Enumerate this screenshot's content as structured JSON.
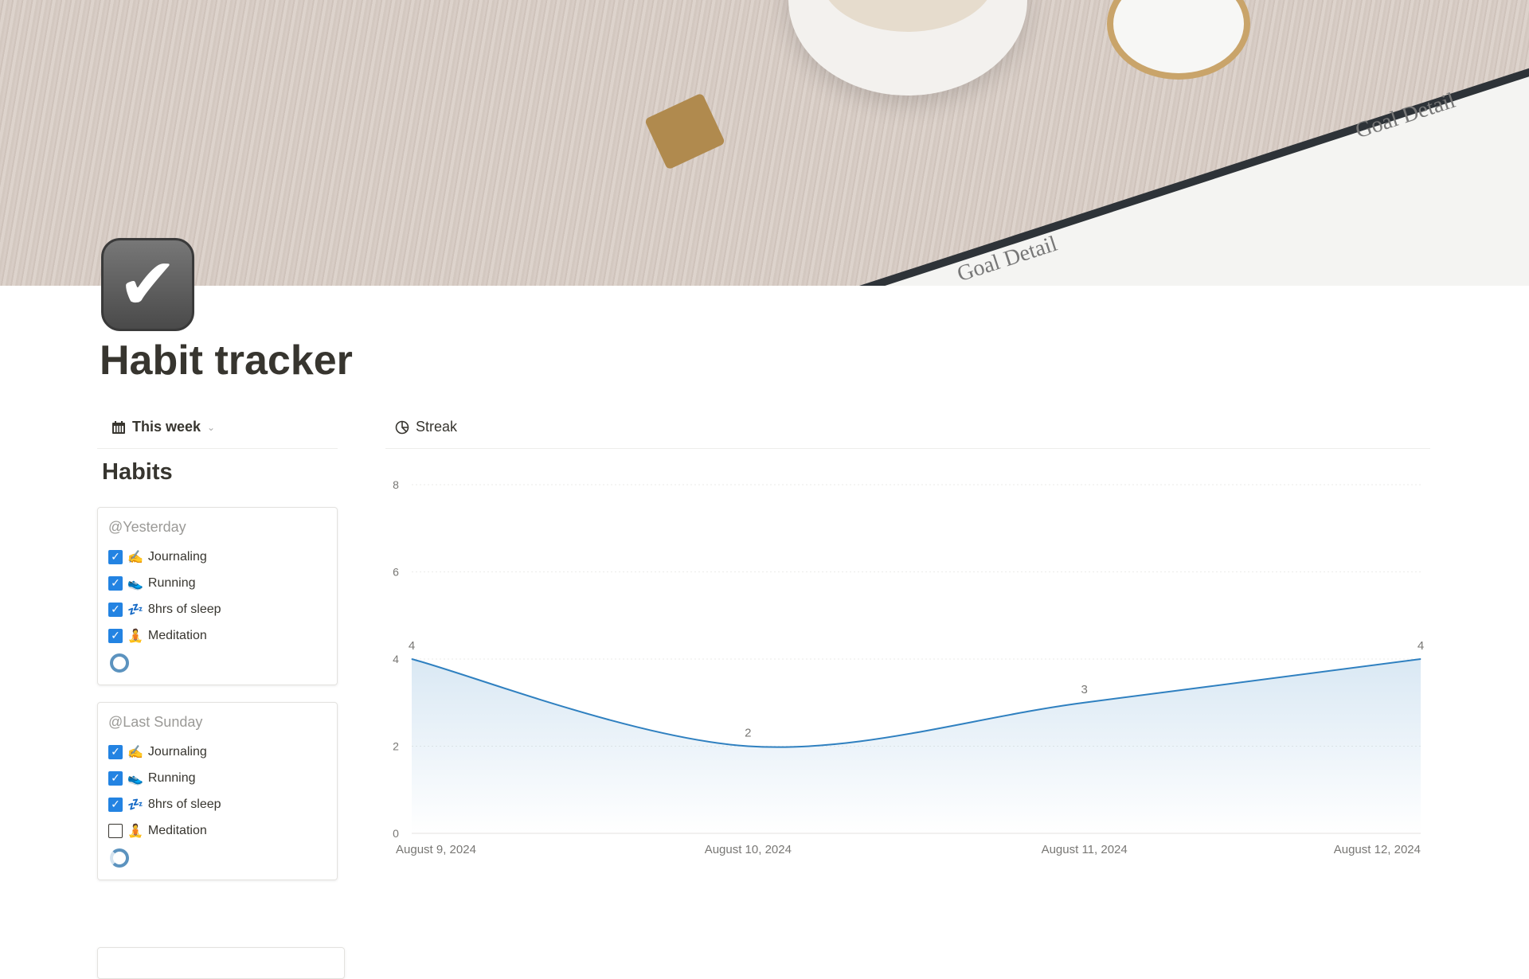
{
  "page": {
    "title": "Habit tracker",
    "icon": "checkmark-icon"
  },
  "view_tab": {
    "label": "This week",
    "icon": "calendar-icon"
  },
  "habits": {
    "heading": "Habits",
    "cards": [
      {
        "date": "@Yesterday",
        "items": [
          {
            "emoji": "✍️",
            "label": "Journaling",
            "checked": true
          },
          {
            "emoji": "👟",
            "label": "Running",
            "checked": true
          },
          {
            "emoji": "💤",
            "label": "8hrs of sleep",
            "checked": true
          },
          {
            "emoji": "🧘",
            "label": "Meditation",
            "checked": true
          }
        ],
        "progress": 1.0
      },
      {
        "date": "@Last Sunday",
        "items": [
          {
            "emoji": "✍️",
            "label": "Journaling",
            "checked": true
          },
          {
            "emoji": "👟",
            "label": "Running",
            "checked": true
          },
          {
            "emoji": "💤",
            "label": "8hrs of sleep",
            "checked": true
          },
          {
            "emoji": "🧘",
            "label": "Meditation",
            "checked": false
          }
        ],
        "progress": 0.75
      }
    ]
  },
  "streak_tab": {
    "label": "Streak",
    "icon": "chart-pie-icon"
  },
  "chart_data": {
    "type": "area",
    "categories": [
      "August 9, 2024",
      "August 10, 2024",
      "August 11, 2024",
      "August 12, 2024"
    ],
    "values": [
      4,
      2,
      3,
      4
    ],
    "ylim": [
      0,
      8
    ],
    "yticks": [
      "0",
      "2",
      "4",
      "6",
      "8"
    ],
    "data_labels": [
      "4",
      "2",
      "3",
      "4"
    ],
    "grid": true,
    "color": "#2f80c0"
  }
}
